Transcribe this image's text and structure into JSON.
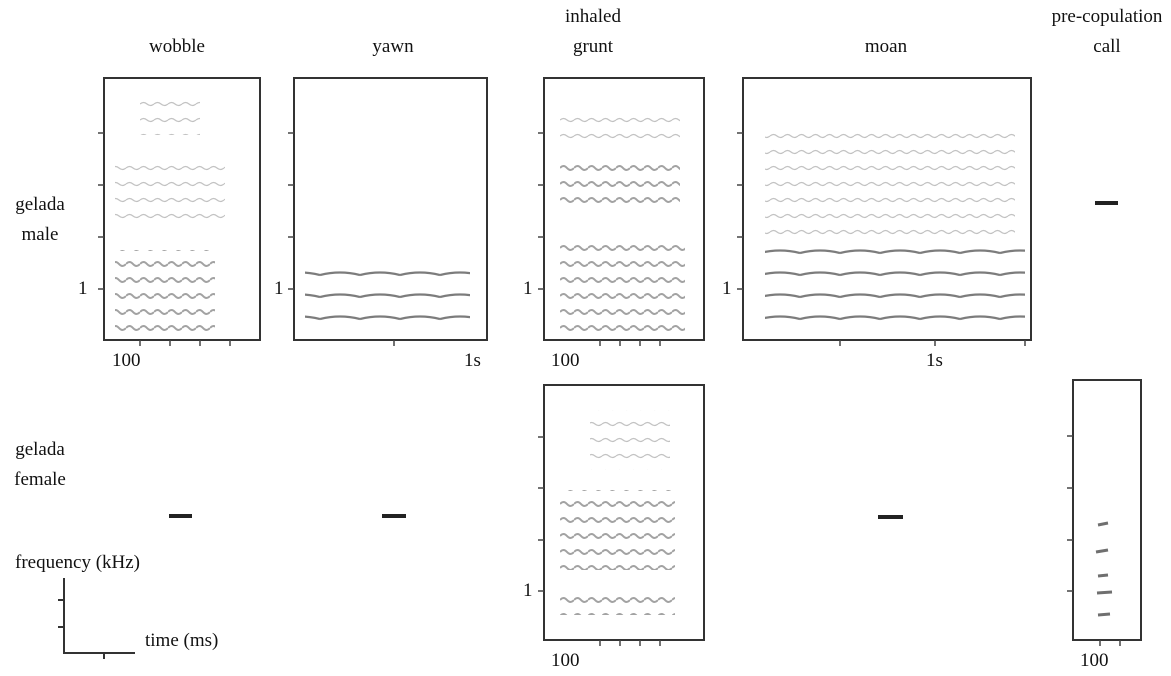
{
  "columns": [
    "wobble",
    "yawn",
    "inhaled grunt",
    "moan",
    "pre-copulation call"
  ],
  "rows": [
    "gelada male",
    "gelada female"
  ],
  "male": {
    "wobble": {
      "y_label": "1",
      "x_label": "100"
    },
    "yawn": {
      "y_label": "1",
      "x_label": "1s"
    },
    "grunt": {
      "y_label": "1",
      "x_label": "100"
    },
    "moan": {
      "y_label": "1",
      "x_label": "1s"
    }
  },
  "female": {
    "grunt": {
      "y_label": "1",
      "x_label": "100"
    },
    "precop": {
      "x_label": "100"
    }
  },
  "legend": {
    "y_axis": "frequency (kHz)",
    "x_axis": "time (ms)"
  }
}
